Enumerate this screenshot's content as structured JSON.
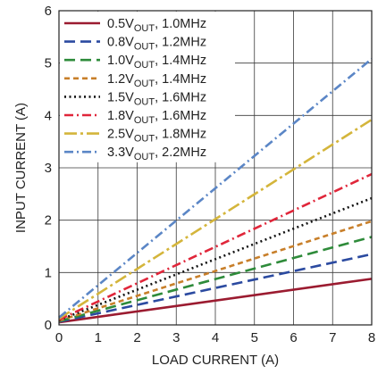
{
  "chart_data": {
    "type": "line",
    "title": "",
    "xlabel": "LOAD CURRENT (A)",
    "ylabel": "INPUT CURRENT (A)",
    "xlim": [
      0,
      8
    ],
    "ylim": [
      0,
      6
    ],
    "x_ticks": [
      "0",
      "1",
      "2",
      "3",
      "4",
      "5",
      "6",
      "7",
      "8"
    ],
    "y_ticks": [
      "0",
      "1",
      "2",
      "3",
      "4",
      "5",
      "6"
    ],
    "grid": true,
    "legend_position": "top-left",
    "series": [
      {
        "name": "0.5VOUT, 1.0MHz",
        "legend_parts": [
          "0.5V",
          "OUT",
          ", 1.0MHz"
        ],
        "color": "#9b1b30",
        "dash": "solid",
        "x": [
          0,
          8
        ],
        "y": [
          0.05,
          0.88
        ]
      },
      {
        "name": "0.8VOUT, 1.2MHz",
        "legend_parts": [
          "0.8V",
          "OUT",
          ", 1.2MHz"
        ],
        "color": "#2b4aa0",
        "dash": "dash",
        "x": [
          0,
          8
        ],
        "y": [
          0.06,
          1.35
        ]
      },
      {
        "name": "1.0VOUT, 1.4MHz",
        "legend_parts": [
          "1.0V",
          "OUT",
          ", 1.4MHz"
        ],
        "color": "#2e8b3a",
        "dash": "dash",
        "x": [
          0,
          8
        ],
        "y": [
          0.07,
          1.68
        ]
      },
      {
        "name": "1.2VOUT, 1.4MHz",
        "legend_parts": [
          "1.2V",
          "OUT",
          ", 1.4MHz"
        ],
        "color": "#c87f2a",
        "dash": "short-dash",
        "x": [
          0,
          8
        ],
        "y": [
          0.08,
          1.98
        ]
      },
      {
        "name": "1.5VOUT, 1.6MHz",
        "legend_parts": [
          "1.5V",
          "OUT",
          ", 1.6MHz"
        ],
        "color": "#111111",
        "dash": "dot",
        "x": [
          0,
          8
        ],
        "y": [
          0.09,
          2.42
        ]
      },
      {
        "name": "1.8VOUT, 1.6MHz",
        "legend_parts": [
          "1.8V",
          "OUT",
          ", 1.6MHz"
        ],
        "color": "#e0263a",
        "dash": "dash-dot",
        "x": [
          0,
          8
        ],
        "y": [
          0.1,
          2.88
        ]
      },
      {
        "name": "2.5VOUT, 1.8MHz",
        "legend_parts": [
          "2.5V",
          "OUT",
          ", 1.8MHz"
        ],
        "color": "#d4b53b",
        "dash": "long-dash-dot",
        "x": [
          0,
          8
        ],
        "y": [
          0.12,
          3.92
        ]
      },
      {
        "name": "3.3VOUT, 2.2MHz",
        "legend_parts": [
          "3.3V",
          "OUT",
          ", 2.2MHz"
        ],
        "color": "#5b86c6",
        "dash": "dash-dot",
        "x": [
          0,
          8
        ],
        "y": [
          0.14,
          5.08
        ]
      }
    ]
  }
}
